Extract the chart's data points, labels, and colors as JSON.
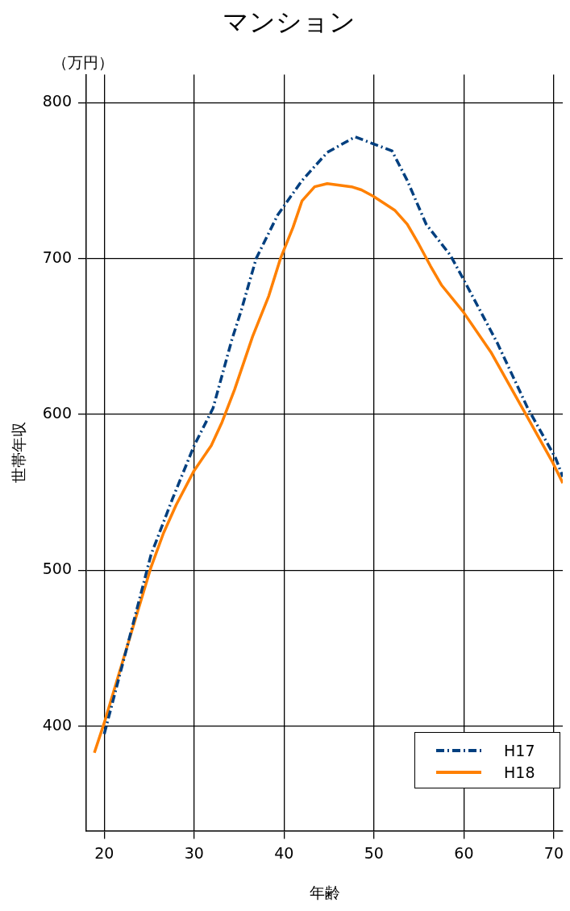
{
  "chart_data": {
    "type": "line",
    "title": "マンション",
    "xlabel": "年齢",
    "ylabel": "世帯年収",
    "annotations": [
      "（万円）"
    ],
    "xlim": [
      18,
      71
    ],
    "xticks": [
      20,
      30,
      40,
      50,
      60,
      70
    ],
    "ylim": [
      333,
      818
    ],
    "yticks": [
      400,
      500,
      600,
      700,
      800
    ],
    "grid": true,
    "legend": "bottom right",
    "marker": "none",
    "series": [
      {
        "name": "H17",
        "color": "#003f7f",
        "line_style": "dashed",
        "x": [
          20,
          22.5,
          25.2,
          27.6,
          30,
          32.1,
          34.2,
          35.2,
          36.9,
          39.3,
          42,
          44.8,
          47.9,
          52,
          53.7,
          55.8,
          58.5,
          60.2,
          63.7,
          67.1,
          70.2,
          71
        ],
        "values": [
          395,
          450,
          510,
          546,
          580,
          604,
          648,
          666,
          700,
          728,
          750,
          768,
          778,
          769,
          750,
          722,
          702,
          684,
          646,
          604,
          572,
          560
        ]
      },
      {
        "name": "H18",
        "color": "#ff8000",
        "line_style": "solid",
        "x": [
          18.9,
          20.1,
          22.8,
          25.2,
          26.6,
          28,
          30,
          31.9,
          33.1,
          34.5,
          36.5,
          38.3,
          39.6,
          41,
          42,
          43.4,
          44.8,
          47.5,
          48.6,
          49.9,
          52.3,
          53.7,
          55,
          56.3,
          57.5,
          59.9,
          63,
          66.7,
          69.8,
          71
        ],
        "values": [
          383,
          404,
          456,
          502,
          524,
          542,
          564,
          580,
          595,
          616,
          650,
          676,
          700,
          720,
          737,
          746,
          748,
          746,
          744,
          740,
          731,
          722,
          709,
          695,
          683,
          666,
          640,
          602,
          570,
          556
        ]
      }
    ]
  }
}
